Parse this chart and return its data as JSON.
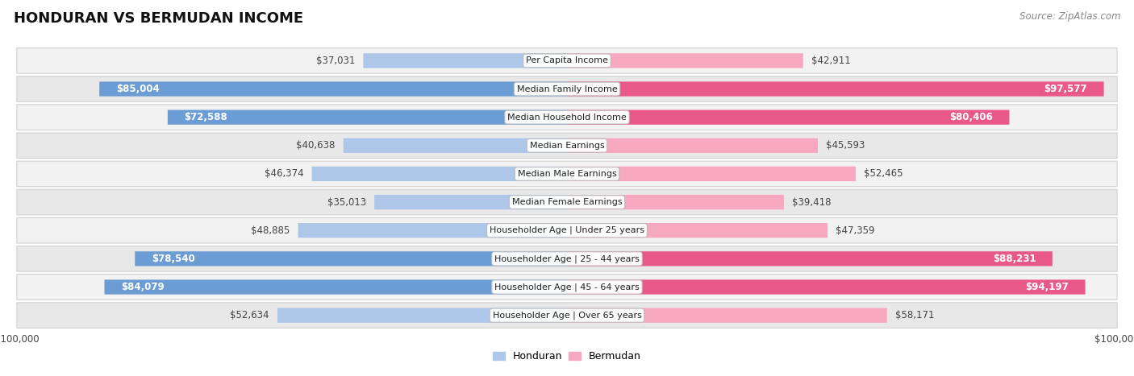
{
  "title": "HONDURAN VS BERMUDAN INCOME",
  "source": "Source: ZipAtlas.com",
  "categories": [
    "Per Capita Income",
    "Median Family Income",
    "Median Household Income",
    "Median Earnings",
    "Median Male Earnings",
    "Median Female Earnings",
    "Householder Age | Under 25 years",
    "Householder Age | 25 - 44 years",
    "Householder Age | 45 - 64 years",
    "Householder Age | Over 65 years"
  ],
  "honduran": [
    37031,
    85004,
    72588,
    40638,
    46374,
    35013,
    48885,
    78540,
    84079,
    52634
  ],
  "bermudan": [
    42911,
    97577,
    80406,
    45593,
    52465,
    39418,
    47359,
    88231,
    94197,
    58171
  ],
  "max_value": 100000,
  "bar_height": 0.52,
  "honduran_light": "#aec6e8",
  "honduran_dark": "#6b9dd4",
  "bermudan_light": "#f5a8c0",
  "bermudan_dark": "#e8598a",
  "row_bg_odd": "#f2f2f2",
  "row_bg_even": "#e8e8e8",
  "row_border": "#d0d0d0",
  "title_fontsize": 13,
  "source_fontsize": 8.5,
  "bar_label_fontsize": 8.5,
  "category_fontsize": 8,
  "legend_fontsize": 9,
  "axis_label_fontsize": 8.5,
  "inside_threshold": 60000
}
